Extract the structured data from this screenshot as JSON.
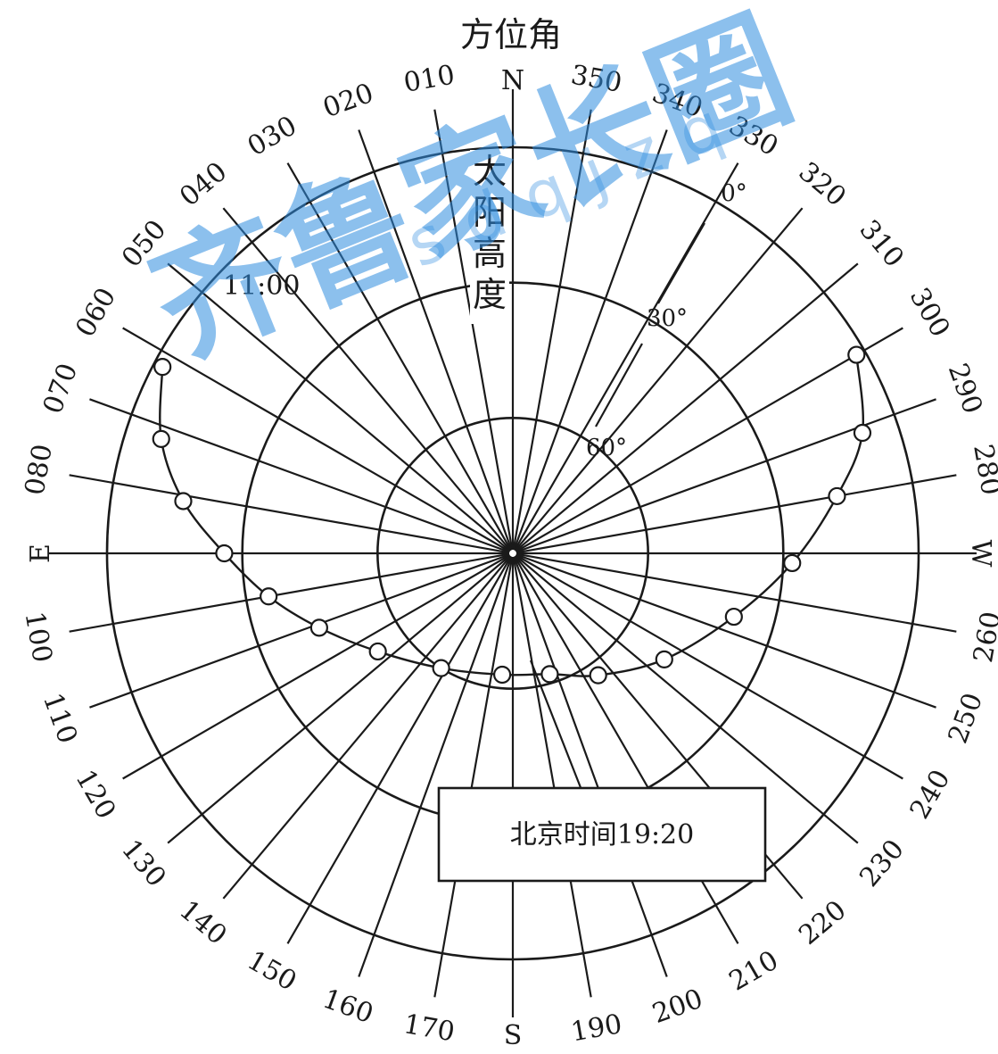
{
  "diagram": {
    "title": "方位角",
    "altitude_label": "太阳高度",
    "altitude_rings": [
      {
        "label": "0°",
        "altitude": 0
      },
      {
        "label": "30°",
        "altitude": 30
      },
      {
        "label": "60°",
        "altitude": 60
      }
    ],
    "directions": {
      "north": "N",
      "south": "S",
      "east": "E",
      "west": "W"
    },
    "azimuth_labels": [
      "010",
      "020",
      "030",
      "040",
      "050",
      "060",
      "070",
      "080",
      "100",
      "110",
      "120",
      "130",
      "140",
      "150",
      "160",
      "170",
      "190",
      "200",
      "210",
      "220",
      "230",
      "240",
      "250",
      "260",
      "280",
      "290",
      "300",
      "310",
      "320",
      "330",
      "340",
      "350"
    ],
    "sunrise_time_label": "11:00",
    "sunset_time_label": "北京时间19:20",
    "sun_path_points": [
      {
        "azimuth": 62,
        "altitude": 2
      },
      {
        "azimuth": 72,
        "altitude": 8
      },
      {
        "azimuth": 81,
        "altitude": 16
      },
      {
        "azimuth": 90,
        "altitude": 26
      },
      {
        "azimuth": 100,
        "altitude": 35
      },
      {
        "azimuth": 111,
        "altitude": 44
      },
      {
        "azimuth": 126,
        "altitude": 53
      },
      {
        "azimuth": 148,
        "altitude": 60
      },
      {
        "azimuth": 175,
        "altitude": 63
      },
      {
        "azimuth": 197,
        "altitude": 62
      },
      {
        "azimuth": 215,
        "altitude": 57
      },
      {
        "azimuth": 235,
        "altitude": 49
      },
      {
        "azimuth": 254,
        "altitude": 39
      },
      {
        "azimuth": 268,
        "altitude": 28
      },
      {
        "azimuth": 280,
        "altitude": 17
      },
      {
        "azimuth": 289,
        "altitude": 8
      },
      {
        "azimuth": 300,
        "altitude": 2
      }
    ]
  },
  "watermark": {
    "text": "齐鲁家长圈",
    "subtext": "sdqjzq",
    "color": "#2f8de0"
  }
}
